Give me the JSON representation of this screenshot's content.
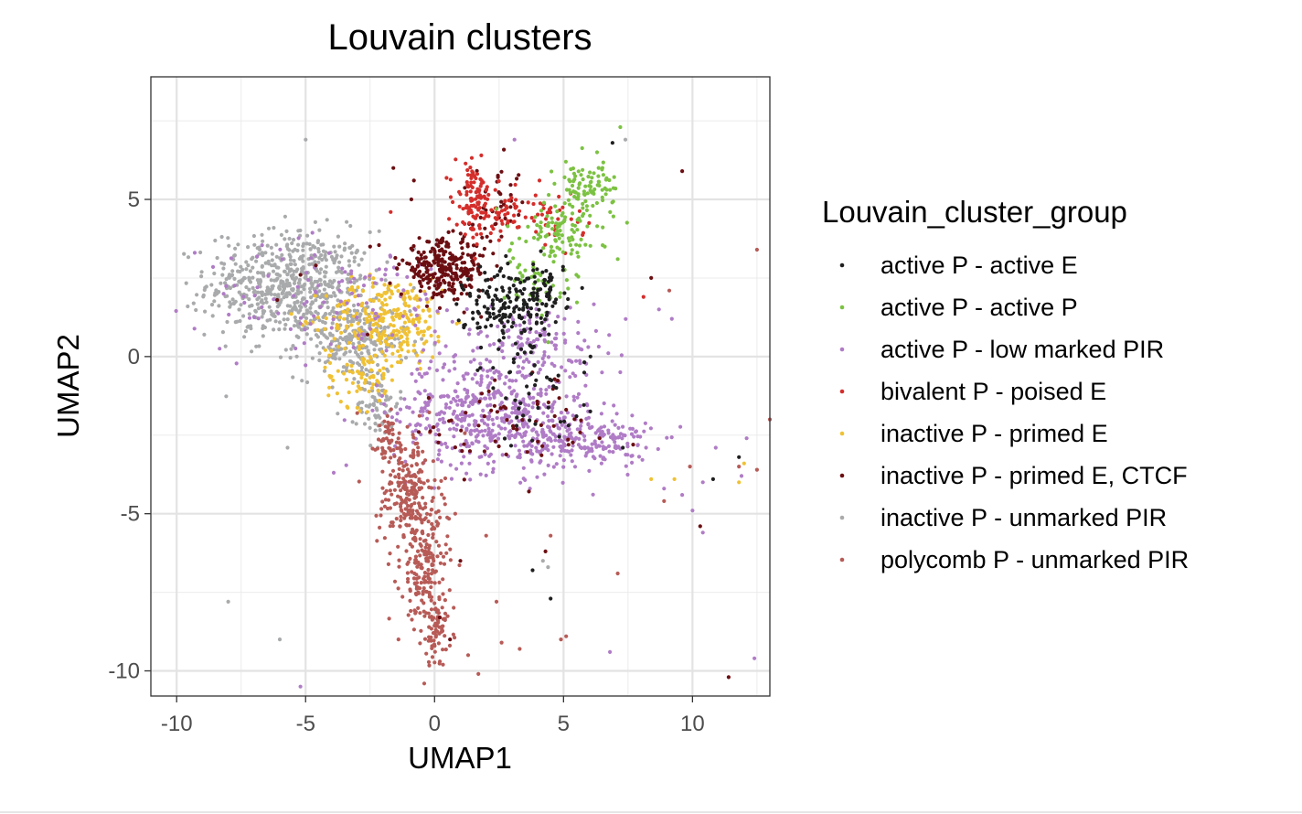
{
  "chart_data": {
    "type": "scatter",
    "title": "Louvain clusters",
    "xlabel": "UMAP1",
    "ylabel": "UMAP2",
    "xlim": [
      -11,
      13
    ],
    "ylim": [
      -10.8,
      8.9
    ],
    "xticks": [
      -10,
      -5,
      0,
      5,
      10
    ],
    "yticks": [
      -10,
      -5,
      0,
      5
    ],
    "xtick_labels": [
      "-10",
      "-5",
      "0",
      "5",
      "10"
    ],
    "ytick_labels": [
      "-10",
      "-5",
      "0",
      "5"
    ],
    "grid": true,
    "legend_position": "right",
    "legend_title": "Louvain_cluster_group",
    "series": [
      {
        "name": "active P - active E",
        "color": "#1f1f1f",
        "clusters": [
          {
            "center": [
              2.8,
              1.5
            ],
            "spread": [
              0.8,
              0.7
            ],
            "count": 150
          },
          {
            "center": [
              4.2,
              2.0
            ],
            "spread": [
              0.5,
              0.5
            ],
            "count": 70
          },
          {
            "center": [
              4.0,
              -1.3
            ],
            "spread": [
              1.0,
              0.8
            ],
            "count": 45
          }
        ],
        "points": [
          [
            6.9,
            6.8
          ],
          [
            4.5,
            -7.7
          ],
          [
            11.8,
            -3.2
          ],
          [
            10.8,
            -3.9
          ],
          [
            7.3,
            -2.9
          ],
          [
            3.8,
            -6.8
          ]
        ]
      },
      {
        "name": "active P - active P",
        "color": "#7cc242",
        "clusters": [
          {
            "center": [
              5.9,
              5.3
            ],
            "spread": [
              0.6,
              0.5
            ],
            "count": 100
          },
          {
            "center": [
              4.6,
              4.0
            ],
            "spread": [
              0.7,
              0.4
            ],
            "count": 80
          },
          {
            "center": [
              4.0,
              2.4
            ],
            "spread": [
              0.6,
              0.6
            ],
            "count": 50
          }
        ],
        "points": [
          [
            7.2,
            7.3
          ],
          [
            6.3,
            6.5
          ],
          [
            2.4,
            4.7
          ],
          [
            3.0,
            3.6
          ],
          [
            6.6,
            3.5
          ],
          [
            7.1,
            3.1
          ],
          [
            5.5,
            2.6
          ]
        ]
      },
      {
        "name": "active P - low marked PIR",
        "color": "#b07cc6",
        "clusters": [
          {
            "center": [
              2.2,
              -1.8
            ],
            "spread": [
              1.9,
              0.9
            ],
            "count": 500
          },
          {
            "center": [
              5.8,
              -2.7
            ],
            "spread": [
              1.3,
              0.4
            ],
            "count": 200
          },
          {
            "center": [
              4.0,
              0.5
            ],
            "spread": [
              1.4,
              0.6
            ],
            "count": 120
          },
          {
            "center": [
              -3.5,
              1.8
            ],
            "spread": [
              2.8,
              0.9
            ],
            "count": 120
          }
        ],
        "points": [
          [
            -9.3,
            3.3
          ],
          [
            -5.9,
            3.1
          ],
          [
            8.2,
            -2.9
          ],
          [
            8.9,
            -4.2
          ],
          [
            9.6,
            -4.4
          ],
          [
            10.4,
            -4.0
          ],
          [
            12.1,
            -2.6
          ],
          [
            12.4,
            -9.6
          ],
          [
            -5.2,
            -10.5
          ],
          [
            6.8,
            -9.4
          ],
          [
            11.9,
            -3.8
          ],
          [
            8.7,
            1.5
          ],
          [
            9.2,
            1.2
          ],
          [
            10.9,
            -2.9
          ],
          [
            10.0,
            -4.9
          ],
          [
            10.4,
            -5.6
          ],
          [
            3.1,
            6.9
          ],
          [
            7.2,
            -0.5
          ]
        ]
      },
      {
        "name": "bivalent P - poised E",
        "color": "#d42e2b",
        "clusters": [
          {
            "center": [
              1.5,
              5.0
            ],
            "spread": [
              0.35,
              0.55
            ],
            "count": 100
          },
          {
            "center": [
              2.6,
              4.6
            ],
            "spread": [
              0.45,
              0.35
            ],
            "count": 50
          },
          {
            "center": [
              4.6,
              4.4
            ],
            "spread": [
              0.6,
              0.4
            ],
            "count": 40
          }
        ],
        "points": [
          [
            2.5,
            3.7
          ],
          [
            8.1,
            1.9
          ],
          [
            -1.7,
            4.6
          ],
          [
            1.8,
            3.9
          ]
        ]
      },
      {
        "name": "inactive P - primed E",
        "color": "#f0c134",
        "clusters": [
          {
            "center": [
              -1.8,
              1.2
            ],
            "spread": [
              1.2,
              0.65
            ],
            "count": 260
          },
          {
            "center": [
              -2.8,
              -0.6
            ],
            "spread": [
              0.7,
              0.5
            ],
            "count": 70
          }
        ],
        "points": [
          [
            8.4,
            -3.9
          ],
          [
            9.3,
            -3.9
          ],
          [
            11.8,
            -4.0
          ],
          [
            12.0,
            -3.4
          ],
          [
            -2.5,
            1.8
          ],
          [
            -1.9,
            -1.1
          ],
          [
            -0.6,
            -0.2
          ],
          [
            0.3,
            2.1
          ]
        ]
      },
      {
        "name": "inactive P - primed E, CTCF",
        "color": "#6b0e12",
        "clusters": [
          {
            "center": [
              0.4,
              2.8
            ],
            "spread": [
              0.85,
              0.45
            ],
            "count": 270
          },
          {
            "center": [
              2.5,
              4.8
            ],
            "spread": [
              0.5,
              0.6
            ],
            "count": 40
          },
          {
            "center": [
              3.0,
              -2.2
            ],
            "spread": [
              1.8,
              0.8
            ],
            "count": 60
          }
        ],
        "points": [
          [
            -1.6,
            6.0
          ],
          [
            -0.8,
            5.6
          ],
          [
            -0.9,
            5.0
          ],
          [
            9.6,
            5.9
          ],
          [
            8.4,
            2.5
          ],
          [
            -4.6,
            2.9
          ],
          [
            -5.2,
            2.6
          ],
          [
            -6.1,
            1.8
          ],
          [
            -2.6,
            0.7
          ],
          [
            0.2,
            -8.3
          ],
          [
            0.6,
            -9.0
          ],
          [
            4.3,
            -6.2
          ],
          [
            6.4,
            -2.6
          ],
          [
            7.7,
            -2.8
          ],
          [
            11.4,
            -10.2
          ],
          [
            10.3,
            -5.4
          ],
          [
            -2.5,
            3.5
          ],
          [
            1.0,
            -6.5
          ]
        ]
      },
      {
        "name": "inactive P - unmarked PIR",
        "color": "#a9aaab",
        "clusters": [
          {
            "center": [
              -5.6,
              2.3
            ],
            "spread": [
              1.6,
              0.85
            ],
            "count": 620
          },
          {
            "center": [
              -3.2,
              0.5
            ],
            "spread": [
              1.1,
              0.6
            ],
            "count": 240
          },
          {
            "center": [
              -2.2,
              -1.5
            ],
            "spread": [
              0.4,
              0.6
            ],
            "count": 70
          }
        ],
        "points": [
          [
            -5.0,
            6.9
          ],
          [
            -8.0,
            -7.8
          ],
          [
            -6.0,
            -9.0
          ],
          [
            -5.7,
            -2.9
          ],
          [
            4.4,
            -6.7
          ],
          [
            4.2,
            -6.5
          ],
          [
            7.4,
            6.9
          ],
          [
            -2.2,
            -2.9
          ]
        ]
      },
      {
        "name": "polycomb P - unmarked PIR",
        "color": "#b75b57",
        "clusters": [
          {
            "center": [
              -1.0,
              -4.4
            ],
            "spread": [
              0.6,
              0.9
            ],
            "count": 220
          },
          {
            "center": [
              -0.4,
              -6.8
            ],
            "spread": [
              0.45,
              0.9
            ],
            "count": 170
          },
          {
            "center": [
              0.1,
              -8.6
            ],
            "spread": [
              0.3,
              0.6
            ],
            "count": 70
          },
          {
            "center": [
              -1.8,
              -2.7
            ],
            "spread": [
              0.4,
              0.4
            ],
            "count": 50
          }
        ],
        "points": [
          [
            2.6,
            -9.1
          ],
          [
            3.3,
            -9.3
          ],
          [
            4.9,
            -9.0
          ],
          [
            5.1,
            -8.9
          ],
          [
            1.3,
            -9.5
          ],
          [
            2.4,
            -7.8
          ],
          [
            0.8,
            -5.0
          ],
          [
            2.0,
            -5.7
          ],
          [
            4.5,
            -5.7
          ],
          [
            9.9,
            -3.5
          ],
          [
            12.5,
            -3.6
          ],
          [
            13.0,
            -2.0
          ],
          [
            8.9,
            -4.6
          ],
          [
            -1.4,
            -9.0
          ],
          [
            -0.4,
            -10.4
          ],
          [
            -3.0,
            -1.8
          ],
          [
            12.5,
            3.4
          ],
          [
            11.8,
            -3.5
          ],
          [
            1.7,
            -10.1
          ],
          [
            7.1,
            -6.9
          ],
          [
            9.1,
            2.1
          ]
        ]
      }
    ]
  }
}
